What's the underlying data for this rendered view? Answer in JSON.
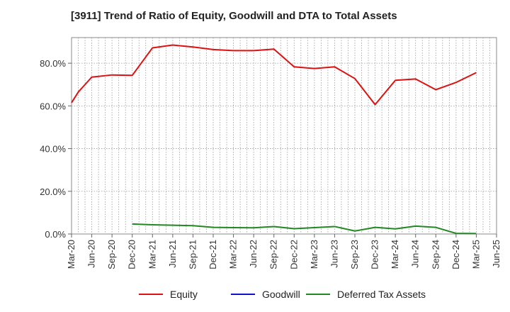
{
  "chart_data": {
    "type": "line",
    "title": "[3911]  Trend of Ratio of Equity, Goodwill and DTA to Total Assets",
    "xlabel": "",
    "ylabel": "",
    "x_ticks": [
      "Mar-20",
      "Jun-20",
      "Sep-20",
      "Dec-20",
      "Mar-21",
      "Jun-21",
      "Sep-21",
      "Dec-21",
      "Mar-22",
      "Jun-22",
      "Sep-22",
      "Dec-22",
      "Mar-23",
      "Jun-23",
      "Sep-23",
      "Dec-23",
      "Mar-24",
      "Jun-24",
      "Sep-24",
      "Dec-24",
      "Mar-25",
      "Jun-25"
    ],
    "y_ticks": [
      "0.0%",
      "20.0%",
      "40.0%",
      "60.0%",
      "80.0%"
    ],
    "ylim": [
      0,
      92
    ],
    "grid": true,
    "legend_position": "bottom",
    "series": [
      {
        "name": "Equity",
        "color": "#dd1111",
        "points": [
          [
            "Mar-20",
            61.5
          ],
          [
            "Apr-20",
            66.5
          ],
          [
            "May-20",
            70.0
          ],
          [
            "Jun-20",
            73.5
          ],
          [
            "Sep-20",
            74.5
          ],
          [
            "Dec-20",
            74.3
          ],
          [
            "Mar-21",
            87.2
          ],
          [
            "Jun-21",
            88.5
          ],
          [
            "Sep-21",
            87.6
          ],
          [
            "Dec-21",
            86.4
          ],
          [
            "Mar-22",
            85.9
          ],
          [
            "Jun-22",
            85.9
          ],
          [
            "Sep-22",
            86.6
          ],
          [
            "Dec-22",
            78.3
          ],
          [
            "Mar-23",
            77.5
          ],
          [
            "Jun-23",
            78.3
          ],
          [
            "Sep-23",
            72.8
          ],
          [
            "Dec-23",
            60.6
          ],
          [
            "Mar-24",
            72.0
          ],
          [
            "Jun-24",
            72.6
          ],
          [
            "Sep-24",
            67.6
          ],
          [
            "Dec-24",
            71.0
          ],
          [
            "Mar-25",
            75.6
          ]
        ]
      },
      {
        "name": "Goodwill",
        "color": "#1111cc",
        "points": []
      },
      {
        "name": "Deferred Tax Assets",
        "color": "#228822",
        "points": [
          [
            "Dec-20",
            4.7
          ],
          [
            "Mar-21",
            4.3
          ],
          [
            "Jun-21",
            4.1
          ],
          [
            "Sep-21",
            3.9
          ],
          [
            "Dec-21",
            3.1
          ],
          [
            "Mar-22",
            3.0
          ],
          [
            "Jun-22",
            2.9
          ],
          [
            "Sep-22",
            3.5
          ],
          [
            "Dec-22",
            2.5
          ],
          [
            "Mar-23",
            3.0
          ],
          [
            "Jun-23",
            3.5
          ],
          [
            "Sep-23",
            1.4
          ],
          [
            "Dec-23",
            3.1
          ],
          [
            "Mar-24",
            2.4
          ],
          [
            "Jun-24",
            3.7
          ],
          [
            "Sep-24",
            3.1
          ],
          [
            "Dec-24",
            0.3
          ],
          [
            "Mar-25",
            0.2
          ]
        ]
      }
    ]
  }
}
